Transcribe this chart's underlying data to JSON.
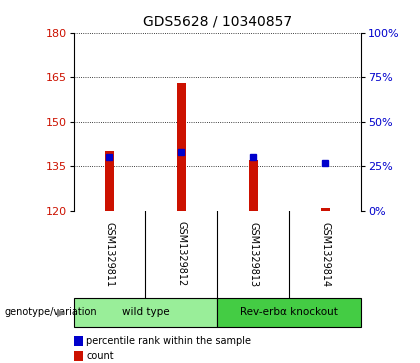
{
  "title": "GDS5628 / 10340857",
  "samples": [
    "GSM1329811",
    "GSM1329812",
    "GSM1329813",
    "GSM1329814"
  ],
  "bar_values": [
    140.0,
    163.0,
    137.0,
    121.0
  ],
  "percentile_values": [
    30.0,
    33.0,
    30.0,
    27.0
  ],
  "ylim_left": [
    120,
    180
  ],
  "ylim_right": [
    0,
    100
  ],
  "yticks_left": [
    120,
    135,
    150,
    165,
    180
  ],
  "yticks_right": [
    0,
    25,
    50,
    75,
    100
  ],
  "bar_color": "#cc1100",
  "dot_color": "#0000cc",
  "groups": [
    {
      "label": "wild type",
      "indices": [
        0,
        1
      ],
      "color": "#99ee99"
    },
    {
      "label": "Rev-erbα knockout",
      "indices": [
        2,
        3
      ],
      "color": "#44cc44"
    }
  ],
  "genotype_label": "genotype/variation",
  "legend_items": [
    {
      "color": "#cc1100",
      "label": "count"
    },
    {
      "color": "#0000cc",
      "label": "percentile rank within the sample"
    }
  ],
  "bar_width": 0.12,
  "background_color": "#ffffff",
  "sample_area_color": "#cccccc",
  "title_fontsize": 10,
  "tick_fontsize": 8
}
